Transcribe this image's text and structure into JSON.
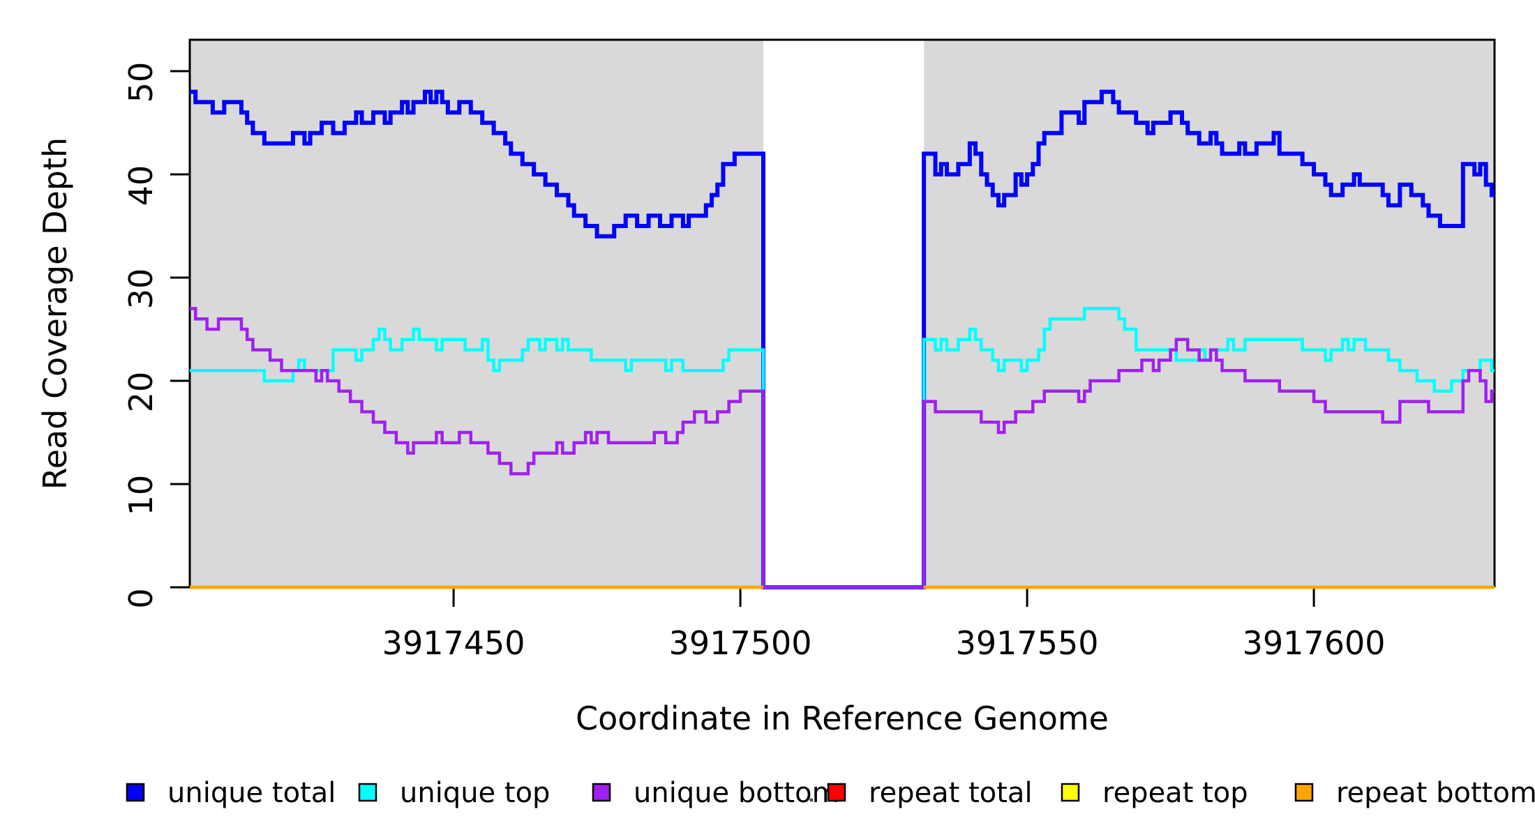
{
  "figure": {
    "xlabel": "Coordinate in Reference Genome",
    "ylabel": "Read Coverage Depth"
  },
  "chart_data": {
    "type": "line",
    "subtype": "step-coverage-plot",
    "title": "",
    "xlabel": "Coordinate in Reference Genome",
    "ylabel": "Read Coverage Depth",
    "xlim": [
      3917404,
      3917631.5
    ],
    "ylim": [
      0,
      53
    ],
    "grid": false,
    "legend_position": "bottom",
    "plot_background": "#d9d9d9",
    "gap_region": {
      "start": 3917504,
      "end": 3917532,
      "fill": "#ffffff",
      "note": "all series drop to 0 in this uncovered window"
    },
    "x_ticks": [
      3917450,
      3917500,
      3917550,
      3917600
    ],
    "x_tick_labels": [
      "3917450",
      "3917500",
      "3917550",
      "3917600"
    ],
    "y_ticks": [
      0,
      10,
      20,
      30,
      40,
      50
    ],
    "y_tick_labels": [
      "0",
      "10",
      "20",
      "30",
      "40",
      "50"
    ],
    "x_start": 3917404,
    "x_step": 1,
    "series": [
      {
        "name": "unique total",
        "color": "#0000ff",
        "width": 6,
        "values": [
          48,
          47,
          47,
          47,
          46,
          46,
          47,
          47,
          47,
          46,
          45,
          44,
          44,
          43,
          43,
          43,
          43,
          43,
          44,
          44,
          43,
          44,
          44,
          45,
          45,
          44,
          44,
          45,
          45,
          46,
          45,
          45,
          46,
          46,
          45,
          46,
          46,
          47,
          46,
          47,
          47,
          48,
          47,
          48,
          47,
          46,
          46,
          47,
          47,
          46,
          46,
          45,
          45,
          44,
          44,
          43,
          42,
          42,
          41,
          41,
          40,
          40,
          39,
          39,
          38,
          38,
          37,
          36,
          36,
          35,
          35,
          34,
          34,
          34,
          35,
          35,
          36,
          36,
          35,
          35,
          36,
          36,
          35,
          35,
          36,
          36,
          35,
          36,
          36,
          36,
          37,
          38,
          39,
          41,
          41,
          42,
          42,
          42,
          42,
          42,
          0,
          0,
          0,
          0,
          0,
          0,
          0,
          0,
          0,
          0,
          0,
          0,
          0,
          0,
          0,
          0,
          0,
          0,
          0,
          0,
          0,
          0,
          0,
          0,
          0,
          0,
          0,
          0,
          42,
          42,
          40,
          41,
          40,
          40,
          41,
          41,
          43,
          42,
          40,
          39,
          38,
          37,
          38,
          38,
          40,
          39,
          40,
          41,
          43,
          44,
          44,
          44,
          46,
          46,
          46,
          45,
          47,
          47,
          47,
          48,
          48,
          47,
          46,
          46,
          46,
          45,
          45,
          44,
          45,
          45,
          45,
          46,
          46,
          45,
          44,
          44,
          43,
          43,
          44,
          43,
          42,
          42,
          42,
          43,
          42,
          42,
          43,
          43,
          43,
          44,
          42,
          42,
          42,
          42,
          41,
          41,
          40,
          40,
          39,
          38,
          38,
          39,
          39,
          40,
          39,
          39,
          39,
          39,
          38,
          37,
          37,
          39,
          39,
          38,
          38,
          37,
          36,
          36,
          35,
          35,
          35,
          35,
          41,
          41,
          40,
          41,
          39,
          38
        ]
      },
      {
        "name": "unique top",
        "color": "#00ffff",
        "width": 4.5,
        "values": [
          21,
          21,
          21,
          21,
          21,
          21,
          21,
          21,
          21,
          21,
          21,
          21,
          21,
          20,
          20,
          20,
          20,
          20,
          21,
          22,
          21,
          21,
          21,
          21,
          21,
          23,
          23,
          23,
          23,
          22,
          23,
          23,
          24,
          25,
          24,
          23,
          23,
          24,
          24,
          25,
          24,
          24,
          24,
          23,
          24,
          24,
          24,
          24,
          23,
          23,
          23,
          24,
          22,
          21,
          22,
          22,
          22,
          22,
          23,
          24,
          24,
          23,
          24,
          24,
          23,
          24,
          23,
          23,
          23,
          23,
          22,
          22,
          22,
          22,
          22,
          22,
          21,
          22,
          22,
          22,
          22,
          22,
          22,
          21,
          22,
          22,
          21,
          21,
          21,
          21,
          21,
          21,
          21,
          22,
          23,
          23,
          23,
          23,
          23,
          23,
          0,
          0,
          0,
          0,
          0,
          0,
          0,
          0,
          0,
          0,
          0,
          0,
          0,
          0,
          0,
          0,
          0,
          0,
          0,
          0,
          0,
          0,
          0,
          0,
          0,
          0,
          0,
          0,
          24,
          24,
          23,
          24,
          23,
          23,
          24,
          24,
          25,
          24,
          23,
          23,
          22,
          21,
          22,
          22,
          22,
          21,
          22,
          22,
          23,
          25,
          26,
          26,
          26,
          26,
          26,
          26,
          27,
          27,
          27,
          27,
          27,
          27,
          26,
          25,
          25,
          23,
          23,
          23,
          23,
          23,
          23,
          23,
          22,
          22,
          22,
          22,
          23,
          22,
          23,
          23,
          23,
          24,
          23,
          23,
          24,
          24,
          24,
          24,
          24,
          24,
          24,
          24,
          24,
          24,
          23,
          23,
          23,
          23,
          22,
          23,
          23,
          24,
          23,
          24,
          24,
          23,
          23,
          23,
          23,
          22,
          22,
          21,
          21,
          21,
          20,
          20,
          20,
          19,
          19,
          19,
          20,
          20,
          21,
          21,
          21,
          22,
          22,
          21
        ]
      },
      {
        "name": "unique bottom",
        "color": "#a020f0",
        "width": 4.5,
        "values": [
          27,
          26,
          26,
          25,
          25,
          26,
          26,
          26,
          26,
          25,
          24,
          23,
          23,
          23,
          22,
          22,
          21,
          21,
          21,
          21,
          21,
          21,
          20,
          21,
          20,
          20,
          19,
          19,
          18,
          18,
          17,
          17,
          16,
          16,
          15,
          15,
          14,
          14,
          13,
          14,
          14,
          14,
          14,
          15,
          14,
          14,
          14,
          15,
          15,
          14,
          14,
          14,
          13,
          13,
          12,
          12,
          11,
          11,
          11,
          12,
          13,
          13,
          13,
          13,
          14,
          13,
          13,
          14,
          14,
          15,
          14,
          15,
          15,
          14,
          14,
          14,
          14,
          14,
          14,
          14,
          14,
          15,
          15,
          14,
          14,
          15,
          16,
          16,
          17,
          17,
          16,
          16,
          17,
          17,
          18,
          18,
          19,
          19,
          19,
          19,
          0,
          0,
          0,
          0,
          0,
          0,
          0,
          0,
          0,
          0,
          0,
          0,
          0,
          0,
          0,
          0,
          0,
          0,
          0,
          0,
          0,
          0,
          0,
          0,
          0,
          0,
          0,
          0,
          18,
          18,
          17,
          17,
          17,
          17,
          17,
          17,
          17,
          17,
          16,
          16,
          16,
          15,
          16,
          16,
          17,
          17,
          17,
          18,
          18,
          19,
          19,
          19,
          19,
          19,
          19,
          18,
          19,
          20,
          20,
          20,
          20,
          20,
          21,
          21,
          21,
          21,
          22,
          22,
          21,
          22,
          22,
          23,
          24,
          24,
          23,
          23,
          22,
          22,
          23,
          22,
          21,
          21,
          21,
          21,
          20,
          20,
          20,
          20,
          20,
          20,
          19,
          19,
          19,
          19,
          19,
          19,
          18,
          18,
          17,
          17,
          17,
          17,
          17,
          17,
          17,
          17,
          17,
          17,
          16,
          16,
          16,
          18,
          18,
          18,
          18,
          18,
          17,
          17,
          17,
          17,
          17,
          17,
          20,
          21,
          21,
          20,
          18,
          19
        ]
      },
      {
        "name": "repeat total",
        "color": "#ff0000",
        "width": 4.5,
        "constant": 0
      },
      {
        "name": "repeat top",
        "color": "#ffff00",
        "width": 4.5,
        "constant": 0
      },
      {
        "name": "repeat bottom",
        "color": "#ffa500",
        "width": 4.5,
        "constant": 0
      }
    ],
    "legend": [
      {
        "label": "unique total",
        "color": "#0000ff"
      },
      {
        "label": "unique top",
        "color": "#00ffff"
      },
      {
        "label": "unique bottom",
        "color": "#a020f0"
      },
      {
        "label": "repeat total",
        "color": "#ff0000"
      },
      {
        "label": "repeat top",
        "color": "#ffff00"
      },
      {
        "label": "repeat bottom",
        "color": "#ffa500"
      }
    ]
  }
}
